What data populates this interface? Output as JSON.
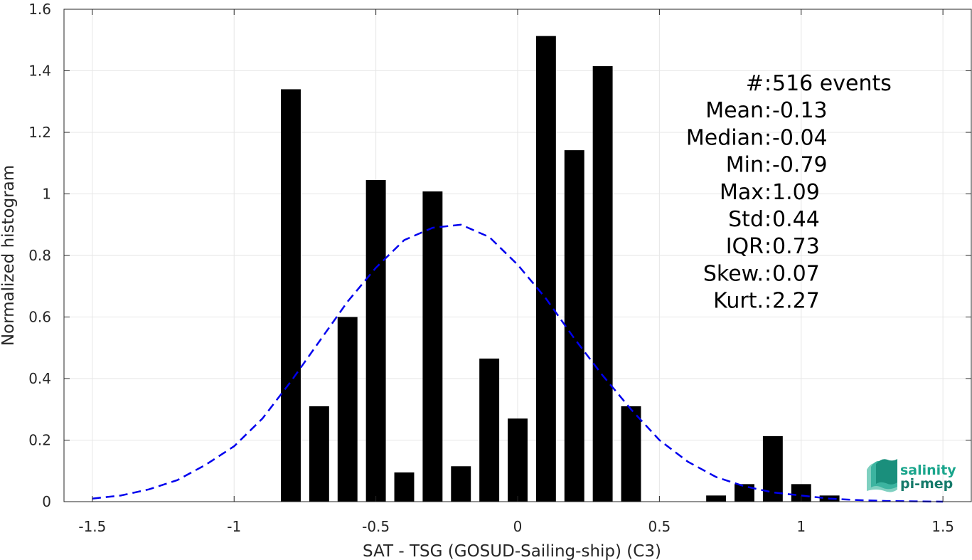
{
  "chart_data": {
    "type": "bar",
    "xlabel": "SAT - TSG (GOSUD-Sailing-ship) (C3)",
    "ylabel": "Normalized histogram",
    "xlim": [
      -1.6,
      1.6
    ],
    "ylim": [
      0,
      1.6
    ],
    "grid": true,
    "x_ticks": [
      -1.5,
      -1,
      -0.5,
      0,
      0.5,
      1,
      1.5
    ],
    "x_tick_labels": [
      "-1.5",
      "-1",
      "-0.5",
      "0",
      "0.5",
      "1",
      "1.5"
    ],
    "y_ticks": [
      0,
      0.2,
      0.4,
      0.6,
      0.8,
      1,
      1.2,
      1.4,
      1.6
    ],
    "y_tick_labels": [
      "0",
      "0.2",
      "0.4",
      "0.6",
      "0.8",
      "1",
      "1.2",
      "1.4",
      "1.6"
    ],
    "bars": {
      "color": "#000000",
      "width": 0.07,
      "x": [
        -0.8,
        -0.7,
        -0.6,
        -0.5,
        -0.4,
        -0.3,
        -0.2,
        -0.1,
        0.0,
        0.1,
        0.2,
        0.3,
        0.4,
        0.7,
        0.8,
        0.9,
        1.0,
        1.1
      ],
      "values": [
        1.34,
        0.31,
        0.6,
        1.045,
        0.095,
        1.008,
        0.115,
        0.465,
        0.27,
        1.513,
        1.142,
        1.415,
        0.31,
        0.02,
        0.057,
        0.213,
        0.057,
        0.02
      ]
    },
    "fit_curve": {
      "color": "#0000ee",
      "style": "dashed",
      "x": [
        -1.5,
        -1.4,
        -1.3,
        -1.2,
        -1.1,
        -1.0,
        -0.9,
        -0.8,
        -0.7,
        -0.6,
        -0.5,
        -0.4,
        -0.3,
        -0.2,
        -0.1,
        0.0,
        0.1,
        0.2,
        0.3,
        0.4,
        0.5,
        0.6,
        0.7,
        0.8,
        0.9,
        1.0,
        1.1,
        1.2,
        1.3,
        1.4,
        1.5
      ],
      "y": [
        0.01,
        0.02,
        0.04,
        0.07,
        0.12,
        0.18,
        0.27,
        0.39,
        0.52,
        0.65,
        0.76,
        0.85,
        0.89,
        0.9,
        0.86,
        0.77,
        0.66,
        0.53,
        0.41,
        0.3,
        0.2,
        0.13,
        0.08,
        0.05,
        0.03,
        0.02,
        0.01,
        0.005,
        0.002,
        0.001,
        0.0
      ]
    },
    "stats": [
      {
        "key": "#  ",
        "value": " 516 events"
      },
      {
        "key": "Mean ",
        "value": " -0.13"
      },
      {
        "key": "Median ",
        "value": " -0.04"
      },
      {
        "key": "Min ",
        "value": " -0.79"
      },
      {
        "key": "Max ",
        "value": " 1.09"
      },
      {
        "key": "Std ",
        "value": " 0.44"
      },
      {
        "key": "IQR ",
        "value": " 0.73"
      },
      {
        "key": "Skew. ",
        "value": " 0.07"
      },
      {
        "key": "Kurt. ",
        "value": " 2.27"
      }
    ]
  },
  "logo": {
    "line1": "salinity",
    "line2": "pi-mep",
    "color1": "#1aa58c",
    "color2": "#157a6a"
  }
}
